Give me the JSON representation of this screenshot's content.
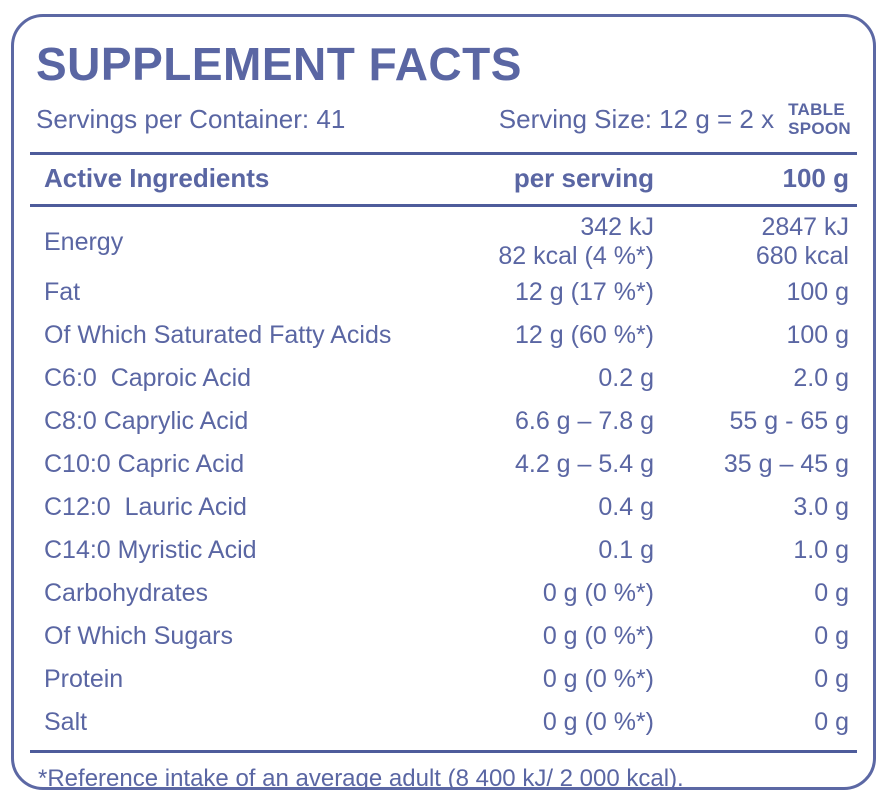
{
  "colors": {
    "text": "#5a66a3",
    "rule": "#4e5c9b",
    "border": "#5c68a4",
    "background": "#ffffff"
  },
  "header": {
    "title": "SUPPLEMENT FACTS",
    "servings_per_container": "Servings per Container: 41",
    "serving_size": "Serving Size: 12 g = 2 x",
    "serving_size_unit": "TABLE\nSPOON"
  },
  "table": {
    "headers": {
      "ingredient": "Active Ingredients",
      "per_serving": "per serving",
      "per_100g": "100 g"
    },
    "rows": [
      {
        "name": "Energy",
        "per_serving": "342 kJ\n82 kcal (4 %*)",
        "per_100g": "2847 kJ\n680 kcal"
      },
      {
        "name": "Fat",
        "per_serving": "12 g (17 %*)",
        "per_100g": "100 g"
      },
      {
        "name": "Of Which Saturated Fatty Acids",
        "per_serving": "12 g (60 %*)",
        "per_100g": "100 g"
      },
      {
        "name": "C6:0  Caproic Acid",
        "per_serving": "0.2 g",
        "per_100g": "2.0 g"
      },
      {
        "name": "C8:0 Caprylic Acid",
        "per_serving": "6.6 g – 7.8 g",
        "per_100g": "55 g - 65 g"
      },
      {
        "name": "C10:0 Capric Acid",
        "per_serving": "4.2 g – 5.4 g",
        "per_100g": "35 g – 45 g"
      },
      {
        "name": "C12:0  Lauric Acid",
        "per_serving": "0.4 g",
        "per_100g": "3.0 g"
      },
      {
        "name": "C14:0 Myristic Acid",
        "per_serving": "0.1 g",
        "per_100g": "1.0 g"
      },
      {
        "name": "Carbohydrates",
        "per_serving": "0 g (0 %*)",
        "per_100g": "0 g"
      },
      {
        "name": "Of Which Sugars",
        "per_serving": "0 g (0 %*)",
        "per_100g": "0 g"
      },
      {
        "name": "Protein",
        "per_serving": "0 g (0 %*)",
        "per_100g": "0 g"
      },
      {
        "name": "Salt",
        "per_serving": "0 g (0 %*)",
        "per_100g": "0 g"
      }
    ]
  },
  "footnote": "*Reference intake of an average adult (8 400 kJ/ 2 000 kcal)."
}
